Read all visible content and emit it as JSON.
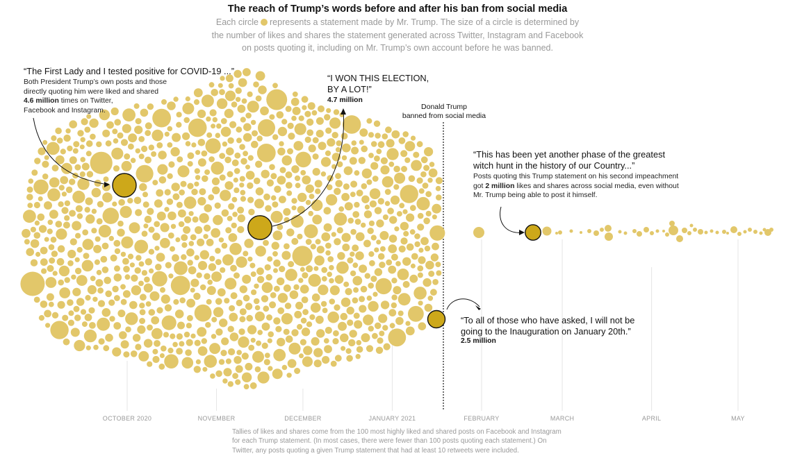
{
  "header": {
    "title": "The reach of Trump’s words before and after his ban from social media",
    "subtitle_lines": [
      [
        "Each circle",
        "represents a statement made by Mr. Trump. The size of a circle is determined by"
      ],
      "the number of likes and shares the statement generated across Twitter, Instagram and Facebook",
      "on posts quoting it, including on Mr. Trump’s own account before he was banned."
    ]
  },
  "annotations": {
    "covid": {
      "quote": "“The First Lady and I tested positive for COVID-19 ...”",
      "note_lines": [
        "Both President Trump’s own posts and those",
        "directly quoting him were liked and shared"
      ],
      "note_bold": "4.6 million",
      "note_rest": " times on Twitter,",
      "note_last": "Facebook and Instagram."
    },
    "won": {
      "quote_lines": [
        "“I WON THIS ELECTION,",
        "BY A LOT!”"
      ],
      "value": "4.7 million"
    },
    "ban": {
      "lines": [
        "Donald Trump",
        "banned from social media"
      ]
    },
    "witch": {
      "quote_lines": [
        "“This has been yet another phase of the greatest",
        "witch hunt in the history of our Country...”"
      ],
      "note_lines": [
        "Posts quoting this Trump statement on his second impeachment"
      ],
      "note_pre": "got ",
      "note_bold": "2 million",
      "note_post": " likes and shares across social media, even without",
      "note_last": "Mr. Trump being able to post it himself."
    },
    "inauguration": {
      "quote_lines": [
        "“To all of those who have asked, I will not be",
        "going to the Inauguration on January 20th.”"
      ],
      "value": "2.5 million"
    }
  },
  "footer": {
    "lines": [
      "Tallies of likes and shares come from the 100 most highly liked and shared posts on Facebook and Instagram",
      "for each Trump statement. (In most cases, there were fewer than 100 posts quoting each statement.) On",
      "Twitter, any posts quoting a given Trump statement that had at least 10 retweets were included."
    ]
  },
  "colors": {
    "circle": "#e2c76a",
    "highlight": "#cda81a",
    "outline": "#121212",
    "axis": "#999999",
    "gridline": "#e6e6e6"
  },
  "chart_data": {
    "type": "scatter",
    "x_axis": {
      "type": "date",
      "ticks": [
        "OCTOBER 2020",
        "NOVEMBER",
        "DECEMBER",
        "JANUARY 2021",
        "FEBRUARY",
        "MARCH",
        "APRIL",
        "MAY"
      ]
    },
    "events": [
      {
        "date": "2021-01-08",
        "label": "Donald Trump banned from social media"
      }
    ],
    "size_measure": "likes and shares",
    "highlighted_statements": [
      {
        "date": "2020-10-02",
        "statement": "“The First Lady and I tested positive for COVID-19 ...”",
        "likes_and_shares": 4600000
      },
      {
        "date": "2020-11-07",
        "statement": "“I WON THIS ELECTION, BY A LOT!”",
        "likes_and_shares": 4700000
      },
      {
        "date": "2021-01-08",
        "statement": "“To all of those who have asked, I will not be going to the Inauguration on January 20th.”",
        "likes_and_shares": 2500000
      },
      {
        "date": "2021-02-13",
        "statement": "“This has been yet another phase of the greatest witch hunt in the history of our Country...”",
        "likes_and_shares": 2000000
      }
    ]
  }
}
